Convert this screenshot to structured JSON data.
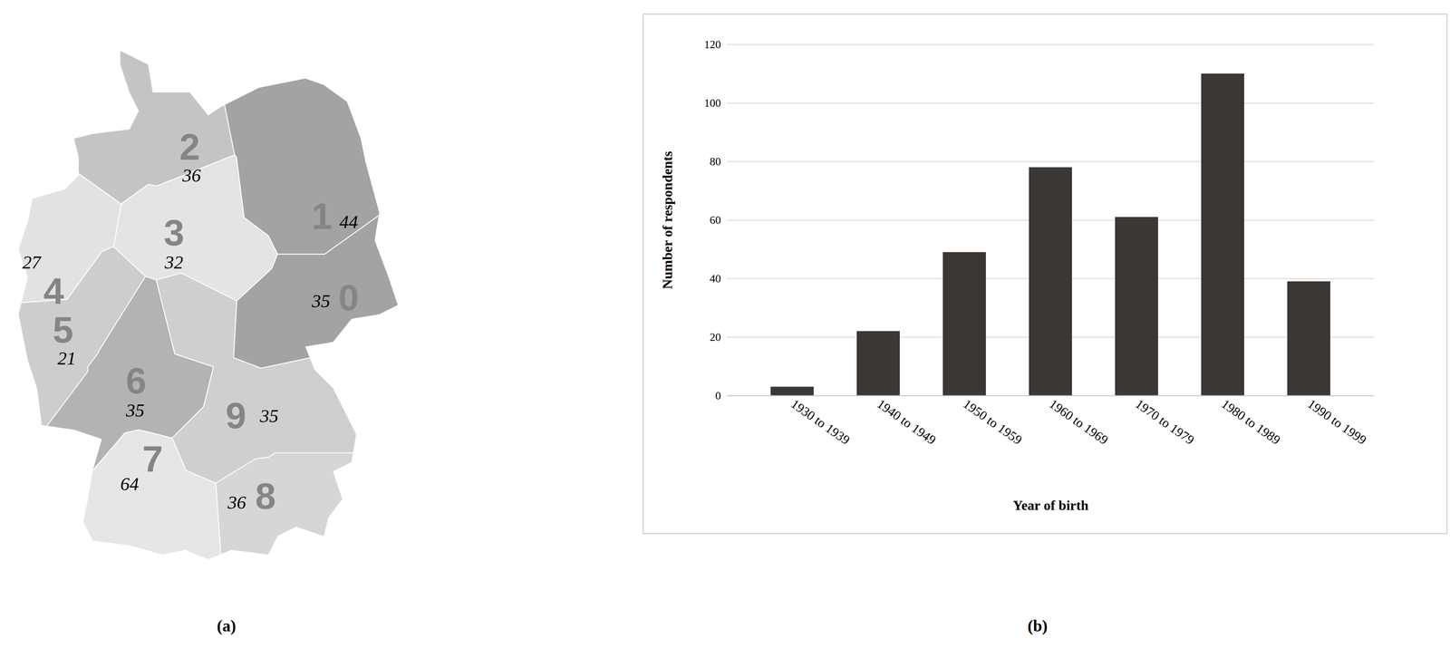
{
  "chart_data": [
    {
      "type": "map",
      "title": "(a)",
      "categories": [
        "0",
        "1",
        "2",
        "3",
        "4",
        "5",
        "6",
        "7",
        "8",
        "9"
      ],
      "values": [
        35,
        44,
        36,
        32,
        27,
        21,
        35,
        64,
        36,
        35
      ],
      "colors": [
        "#a3a3a3",
        "#a3a3a3",
        "#c4c4c4",
        "#e4e4e4",
        "#e2e2e2",
        "#cdcdcd",
        "#b3b3b3",
        "#e6e6e6",
        "#d6d6d6",
        "#cfcfcf"
      ]
    },
    {
      "type": "bar",
      "title": "(b)",
      "x_label": "Year of birth",
      "y_label": "Number of respondents",
      "categories": [
        "1930 to 1939",
        "1940 to 1949",
        "1950 to 1959",
        "1960 to 1969",
        "1970 to 1979",
        "1980 to 1989",
        "1990 to 1999"
      ],
      "values": [
        3,
        22,
        49,
        78,
        61,
        110,
        39
      ],
      "color": "#3b3735",
      "ylim": [
        0,
        120
      ],
      "yticks": [
        0,
        20,
        40,
        60,
        80,
        100,
        120
      ],
      "grid": true
    }
  ]
}
